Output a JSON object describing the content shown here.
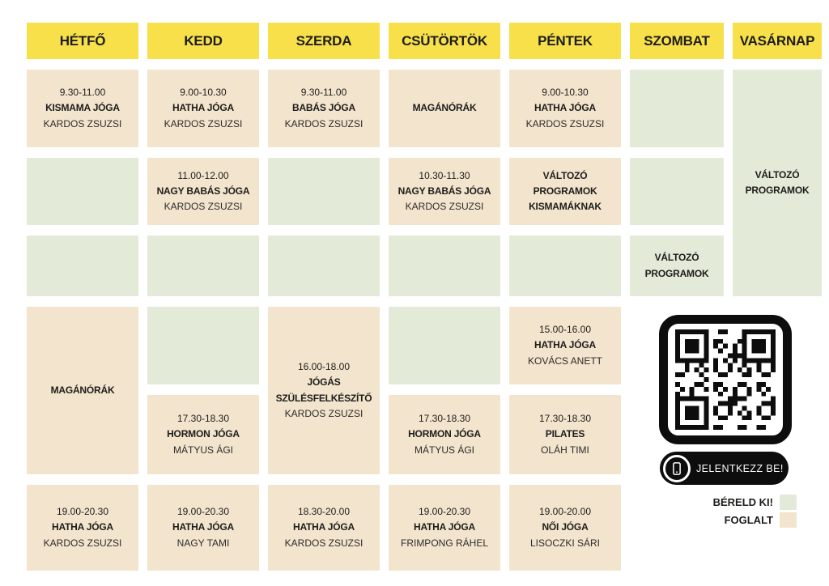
{
  "colors": {
    "day_header_bg": "#F8E04B",
    "free_bg": "#E4EAD8",
    "booked_bg": "#F3E4CD",
    "text": "#1D1D1B",
    "button_bg": "#0D0D0D",
    "button_text": "#FFFFFF"
  },
  "days": [
    {
      "label": "HÉTFŐ",
      "events": [
        {
          "time": "9.30-11.00",
          "title": "KISMAMA JÓGA",
          "teacher": "KARDOS ZSUZSI"
        },
        {
          "title": "MAGÁNÓRÁK"
        },
        {
          "time": "19.00-20.30",
          "title": "HATHA JÓGA",
          "teacher": "KARDOS ZSUZSI"
        }
      ]
    },
    {
      "label": "KEDD",
      "events": [
        {
          "time": "9.00-10.30",
          "title": "HATHA JÓGA",
          "teacher": "KARDOS ZSUZSI"
        },
        {
          "time": "11.00-12.00",
          "title": "NAGY BABÁS JÓGA",
          "teacher": "KARDOS ZSUZSI"
        },
        {
          "time": "17.30-18.30",
          "title": "HORMON JÓGA",
          "teacher": "MÁTYUS ÁGI"
        },
        {
          "time": "19.00-20.30",
          "title": "HATHA JÓGA",
          "teacher": "NAGY TAMI"
        }
      ]
    },
    {
      "label": "SZERDA",
      "events": [
        {
          "time": "9.30-11.00",
          "title": "BABÁS JÓGA",
          "teacher": "KARDOS ZSUZSI"
        },
        {
          "time": "16.00-18.00",
          "title": "JÓGÁS SZÜLÉSFELKÉSZÍTŐ",
          "teacher": "KARDOS ZSUZSI"
        },
        {
          "time": "18.30-20.00",
          "title": "HATHA JÓGA",
          "teacher": "KARDOS ZSUZSI"
        }
      ]
    },
    {
      "label": "CSÜTÖRTÖK",
      "events": [
        {
          "title": "MAGÁNÓRÁK"
        },
        {
          "time": "10.30-11.30",
          "title": "NAGY BABÁS JÓGA",
          "teacher": "KARDOS ZSUZSI"
        },
        {
          "time": "17.30-18.30",
          "title": "HORMON JÓGA",
          "teacher": "MÁTYUS ÁGI"
        },
        {
          "time": "19.00-20.30",
          "title": "HATHA JÓGA",
          "teacher": "FRIMPONG RÁHEL"
        }
      ]
    },
    {
      "label": "PÉNTEK",
      "events": [
        {
          "time": "9.00-10.30",
          "title": "HATHA JÓGA",
          "teacher": "KARDOS ZSUZSI"
        },
        {
          "title": "VÁLTOZÓ PROGRAMOK KISMAMÁKNAK"
        },
        {
          "time": "15.00-16.00",
          "title": "HATHA JÓGA",
          "teacher": "KOVÁCS ANETT"
        },
        {
          "time": "17.30-18.30",
          "title": "PILATES",
          "teacher": "OLÁH TIMI"
        },
        {
          "time": "19.00-20.00",
          "title": "NŐI JÓGA",
          "teacher": "LISOCZKI SÁRI"
        }
      ]
    },
    {
      "label": "SZOMBAT",
      "events": [
        {
          "title": "VÁLTOZÓ PROGRAMOK"
        }
      ]
    },
    {
      "label": "VASÁRNAP",
      "events": [
        {
          "title": "VÁLTOZÓ PROGRAMOK"
        }
      ]
    }
  ],
  "cta": {
    "label": "JELENTKEZZ BE!",
    "icon": "phone-icon"
  },
  "legend": [
    {
      "label": "BÉRELD KI!",
      "color": "#E4EAD8"
    },
    {
      "label": "FOGLALT",
      "color": "#F3E4CD"
    }
  ]
}
